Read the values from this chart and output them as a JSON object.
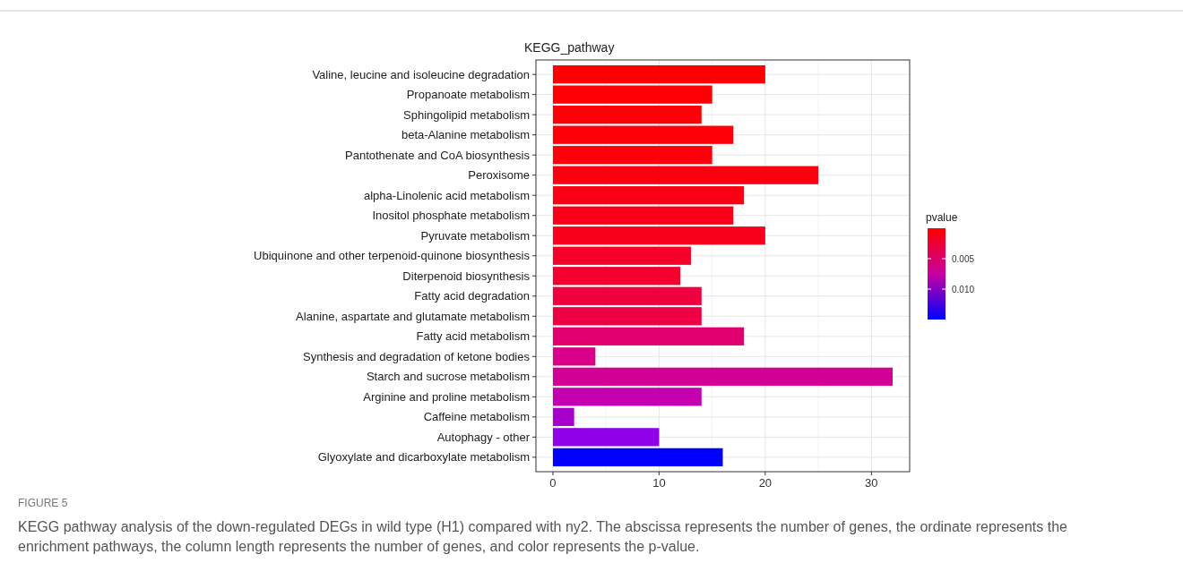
{
  "chart_data": {
    "type": "bar",
    "orientation": "horizontal",
    "title": "KEGG_pathway",
    "clabel": "pvalue",
    "categories": [
      "Valine, leucine and isoleucine degradation",
      "Propanoate metabolism",
      "Sphingolipid metabolism",
      "beta-Alanine metabolism",
      "Pantothenate and CoA biosynthesis",
      "Peroxisome",
      "alpha-Linolenic acid metabolism",
      "Inositol phosphate metabolism",
      "Pyruvate metabolism",
      "Ubiquinone and other terpenoid-quinone biosynthesis",
      "Diterpenoid biosynthesis",
      "Fatty acid degradation",
      "Alanine, aspartate and glutamate metabolism",
      "Fatty acid metabolism",
      "Synthesis and degradation of ketone bodies",
      "Starch and sucrose metabolism",
      "Arginine and proline metabolism",
      "Caffeine metabolism",
      "Autophagy - other",
      "Glyoxylate and dicarboxylate metabolism"
    ],
    "values": [
      20,
      15,
      14,
      17,
      15,
      25,
      18,
      17,
      20,
      13,
      12,
      14,
      14,
      18,
      4,
      32,
      14,
      2,
      10,
      16
    ],
    "colors": [
      "#ff0000",
      "#fe0004",
      "#fd0008",
      "#fd0008",
      "#fc000c",
      "#fb0010",
      "#fa0014",
      "#f90018",
      "#f8001c",
      "#f50028",
      "#f3002f",
      "#ef003f",
      "#ee0044",
      "#e00070",
      "#d9008a",
      "#d20094",
      "#c400b0",
      "#a800cc",
      "#9000e8",
      "#0000ff"
    ],
    "xlim": [
      -1.6,
      33.6
    ],
    "xticks": [
      0,
      10,
      20,
      30
    ],
    "grid": true,
    "clim": [
      0,
      0.015
    ],
    "cticks": [
      0.005,
      {
        "value": 0.01,
        "label": "0.010"
      }
    ],
    "annotations": [
      "FIGURE 5",
      "KEGG pathway analysis of the down-regulated DEGs in wild type (H1) compared with ny2. The abscissa represents the number of genes, the ordinate represents the enrichment pathways, the column length represents the number of genes, and color represents the p-value."
    ]
  }
}
